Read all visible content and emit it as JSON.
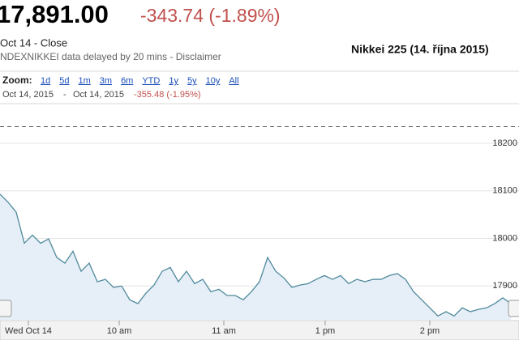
{
  "header": {
    "price": "17,891.00",
    "change": "-343.74 (-1.89%)",
    "close_label": "Oct 14 - Close",
    "source": "NDEXNIKKEI data delayed by 20 mins - Disclaimer",
    "zoom_label": "Zoom:",
    "zoom_options": [
      "1d",
      "5d",
      "1m",
      "3m",
      "6m",
      "YTD",
      "1y",
      "5y",
      "10y",
      "All"
    ],
    "range_start": "Oct 14, 2015",
    "range_separator": "-",
    "range_end": "Oct 14, 2015",
    "range_change": "-355.48 (-1.95%)"
  },
  "chart_data": {
    "type": "line",
    "title": "Nikkei 225 (14. října 2015)",
    "x": [
      0,
      1,
      2,
      3,
      4,
      5,
      6,
      7,
      8,
      9,
      10,
      11,
      12,
      13,
      14,
      15,
      16,
      17,
      18,
      19,
      20,
      21,
      22,
      23,
      24,
      25,
      26,
      27,
      28,
      29,
      30,
      31,
      32,
      33,
      34,
      35,
      36,
      37,
      38,
      39,
      40,
      41,
      42,
      43,
      44,
      45,
      46,
      47,
      48,
      49,
      50,
      51,
      52,
      53,
      54,
      55,
      56,
      57,
      58,
      59,
      60,
      61,
      62,
      63
    ],
    "series": [
      {
        "color": "#4f8a9a",
        "values": [
          18093,
          18076,
          18055,
          17990,
          18007,
          17990,
          17999,
          17960,
          17948,
          17973,
          17931,
          17948,
          17909,
          17914,
          17897,
          17900,
          17871,
          17863,
          17885,
          17902,
          17931,
          17939,
          17909,
          17931,
          17905,
          17914,
          17888,
          17893,
          17880,
          17880,
          17871,
          17888,
          17909,
          17960,
          17931,
          17917,
          17897,
          17902,
          17905,
          17914,
          17922,
          17914,
          17922,
          17905,
          17914,
          17909,
          17914,
          17914,
          17922,
          17926,
          17914,
          17888,
          17871,
          17854,
          17837,
          17846,
          17837,
          17854,
          17846,
          17851,
          17854,
          17863,
          17875,
          17863
        ]
      }
    ],
    "xlim": [
      0,
      63
    ],
    "xticks": [
      {
        "value": 3.5,
        "label": "Wed Oct 14"
      },
      {
        "value": 14.7,
        "label": "10 am"
      },
      {
        "value": 27.6,
        "label": "11 am"
      },
      {
        "value": 40.1,
        "label": "1 pm"
      },
      {
        "value": 53.0,
        "label": "2 pm"
      }
    ],
    "ylim": [
      17829,
      18263
    ],
    "yticks": [
      17900,
      18000,
      18100,
      18200
    ],
    "grid": true,
    "reference_line": 18235,
    "fill": "#e6eef8"
  }
}
